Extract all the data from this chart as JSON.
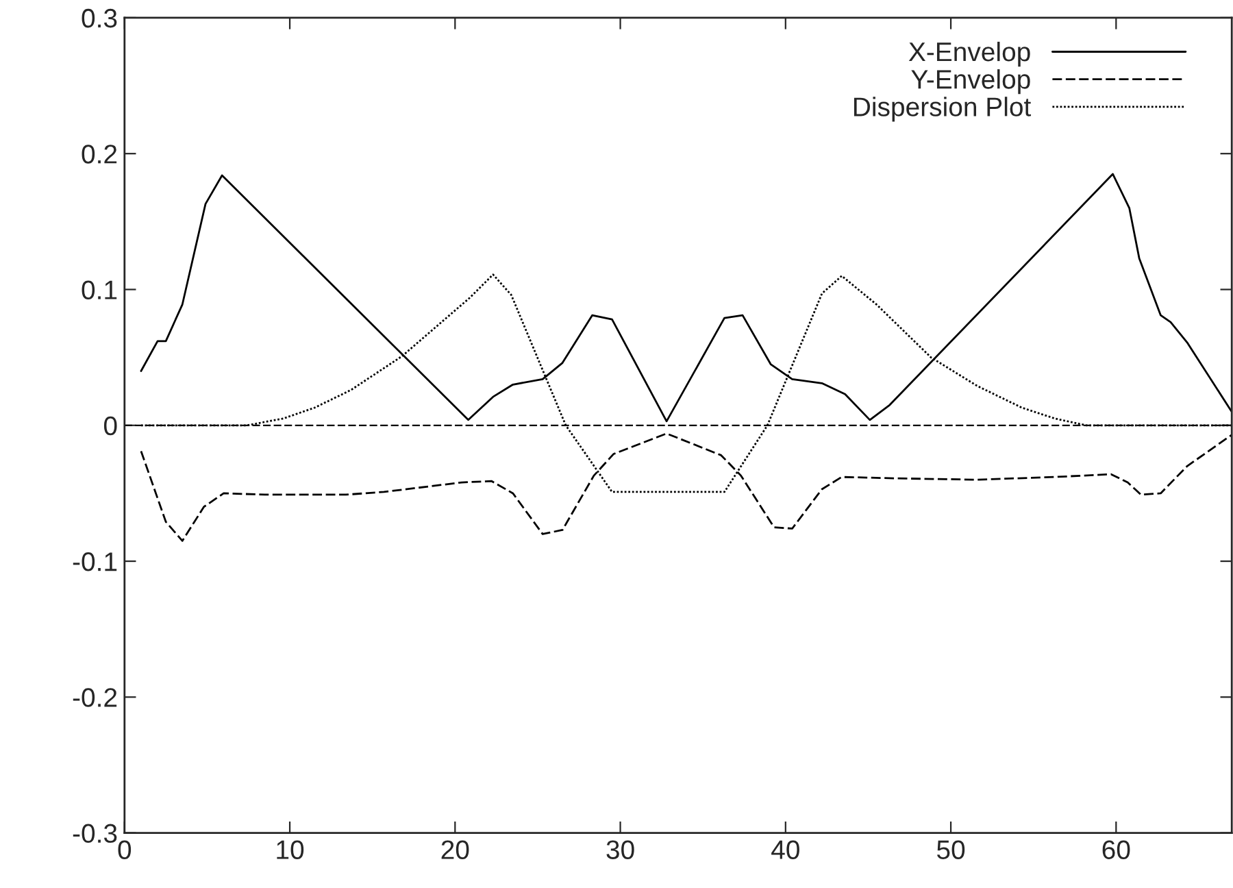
{
  "chart_data": {
    "type": "line",
    "xlim": [
      0,
      67
    ],
    "ylim": [
      -0.3,
      0.3
    ],
    "xticks": [
      0,
      10,
      20,
      30,
      40,
      50,
      60
    ],
    "yticks": [
      -0.3,
      -0.2,
      -0.1,
      0,
      0.1,
      0.2,
      0.3
    ],
    "legend": "top right",
    "grid": false,
    "marker": "none",
    "ref_lines": [
      {
        "axis": "y",
        "value": 0,
        "color": "#000000",
        "line_style": "dashed"
      }
    ],
    "series": [
      {
        "name": "X-Envelop",
        "color": "#000000",
        "line_style": "solid",
        "x": [
          1.0,
          2.0,
          2.5,
          3.5,
          4.9,
          5.9,
          20.8,
          22.3,
          23.5,
          25.3,
          26.5,
          28.3,
          29.5,
          32.8,
          36.3,
          37.4,
          39.1,
          40.4,
          42.2,
          43.6,
          45.1,
          46.3,
          59.8,
          60.8,
          61.4,
          62.7,
          63.3,
          64.3,
          67.0
        ],
        "values": [
          0.04,
          0.062,
          0.062,
          0.089,
          0.163,
          0.184,
          0.004,
          0.021,
          0.03,
          0.034,
          0.046,
          0.081,
          0.078,
          0.003,
          0.079,
          0.081,
          0.045,
          0.034,
          0.031,
          0.023,
          0.004,
          0.015,
          0.185,
          0.16,
          0.123,
          0.081,
          0.076,
          0.061,
          0.01
        ]
      },
      {
        "name": "Y-Envelop",
        "color": "#000000",
        "line_style": "dashed",
        "x": [
          1.0,
          2.5,
          3.5,
          4.8,
          6.0,
          8.5,
          13.4,
          15.7,
          20.4,
          22.2,
          23.5,
          25.3,
          26.5,
          28.4,
          29.6,
          32.8,
          36.1,
          37.3,
          39.3,
          40.4,
          42.2,
          43.4,
          46.6,
          51.6,
          56.3,
          59.7,
          60.7,
          61.5,
          62.7,
          64.3,
          67.0
        ],
        "values": [
          -0.019,
          -0.071,
          -0.085,
          -0.06,
          -0.05,
          -0.051,
          -0.051,
          -0.049,
          -0.042,
          -0.041,
          -0.05,
          -0.08,
          -0.077,
          -0.037,
          -0.021,
          -0.006,
          -0.022,
          -0.037,
          -0.075,
          -0.076,
          -0.047,
          -0.038,
          -0.039,
          -0.04,
          -0.038,
          -0.036,
          -0.042,
          -0.051,
          -0.05,
          -0.03,
          -0.007
        ]
      },
      {
        "name": "Dispersion Plot",
        "color": "#000000",
        "line_style": "dotted",
        "x": [
          1.0,
          7.4,
          9.6,
          11.5,
          13.7,
          16.8,
          20.9,
          22.3,
          23.4,
          26.7,
          29.5,
          36.3,
          38.9,
          42.2,
          43.4,
          45.5,
          48.8,
          51.6,
          54.3,
          56.3,
          58.2,
          67.0
        ],
        "values": [
          0,
          0,
          0.005,
          0.013,
          0.026,
          0.051,
          0.094,
          0.111,
          0.096,
          0,
          -0.049,
          -0.049,
          0,
          0.097,
          0.11,
          0.089,
          0.05,
          0.029,
          0.013,
          0.005,
          0,
          0
        ]
      }
    ]
  }
}
